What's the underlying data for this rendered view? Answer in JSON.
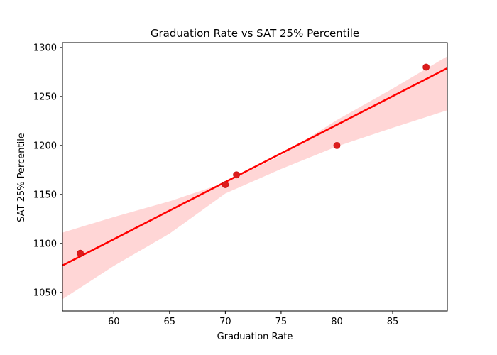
{
  "chart_data": {
    "type": "scatter",
    "title": "Graduation Rate vs SAT 25% Percentile",
    "xlabel": "Graduation Rate",
    "ylabel": "SAT 25% Percentile",
    "xlim": [
      55.4,
      89.9
    ],
    "ylim": [
      1031,
      1305
    ],
    "xticks": [
      60,
      65,
      70,
      75,
      80,
      85
    ],
    "yticks": [
      1050,
      1100,
      1150,
      1200,
      1250,
      1300
    ],
    "grid": false,
    "series": [
      {
        "points": [
          {
            "x": 57,
            "y": 1090
          },
          {
            "x": 70,
            "y": 1160
          },
          {
            "x": 71,
            "y": 1170
          },
          {
            "x": 80,
            "y": 1200
          },
          {
            "x": 88,
            "y": 1280
          }
        ]
      }
    ],
    "regression": {
      "slope": 5.84,
      "intercept": 753.9,
      "confidence_band": [
        {
          "x": 55.4,
          "lower": 1043,
          "upper": 1111
        },
        {
          "x": 60,
          "lower": 1077,
          "upper": 1127
        },
        {
          "x": 65,
          "lower": 1110,
          "upper": 1143
        },
        {
          "x": 70,
          "lower": 1151,
          "upper": 1162
        },
        {
          "x": 75,
          "lower": 1176,
          "upper": 1190
        },
        {
          "x": 80,
          "lower": 1199,
          "upper": 1226
        },
        {
          "x": 85,
          "lower": 1218,
          "upper": 1258
        },
        {
          "x": 89.9,
          "lower": 1236,
          "upper": 1291
        }
      ]
    },
    "colors": {
      "points": "#dd1c1c",
      "line": "#ff0000",
      "band": "#ffd6d6"
    }
  }
}
